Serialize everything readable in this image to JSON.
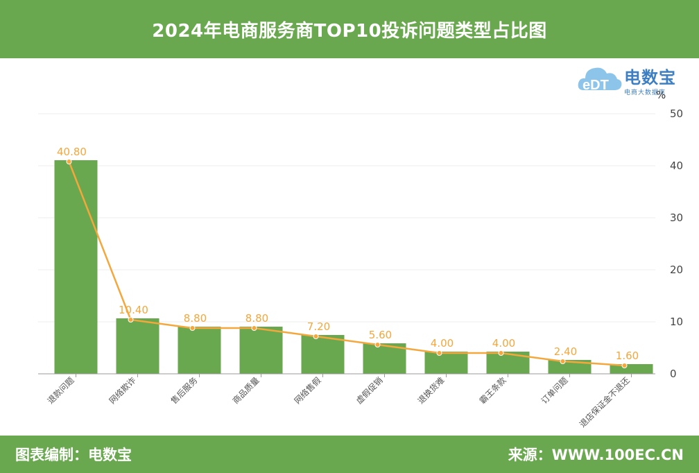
{
  "header": {
    "title": "2024年电商服务商TOP10投诉问题类型占比图"
  },
  "footer": {
    "left": "图表编制：电数宝",
    "right": "来源：WWW.100EC.CN"
  },
  "logo": {
    "brand": "电数宝",
    "tagline": "电商大数据库",
    "mark": "eDT"
  },
  "colors": {
    "bar": "#6aa84f",
    "line": "#f4a73c",
    "header": "#6aa84f"
  },
  "chart_data": {
    "type": "bar",
    "title": "2024年电商服务商TOP10投诉问题类型占比图",
    "unit": "%",
    "categories": [
      "退款问题",
      "网络欺诈",
      "售后服务",
      "商品质量",
      "网络售假",
      "虚假促销",
      "退换货难",
      "霸王条款",
      "订单问题",
      "退店保证金不退还"
    ],
    "series": [
      {
        "type": "bar",
        "values": [
          40.8,
          10.4,
          8.8,
          8.8,
          7.2,
          5.6,
          4.0,
          4.0,
          2.4,
          1.6
        ]
      },
      {
        "type": "line",
        "values": [
          40.8,
          10.4,
          8.8,
          8.8,
          7.2,
          5.6,
          4.0,
          4.0,
          2.4,
          1.6
        ]
      }
    ],
    "data_labels": [
      "40.80",
      "10.40",
      "8.80",
      "8.80",
      "7.20",
      "5.60",
      "4.00",
      "4.00",
      "2.40",
      "1.60"
    ],
    "yticks": [
      "0",
      "10",
      "20",
      "30",
      "40",
      "50"
    ],
    "ylim": [
      0,
      50
    ],
    "y_axis_side": "right",
    "grid": true
  }
}
